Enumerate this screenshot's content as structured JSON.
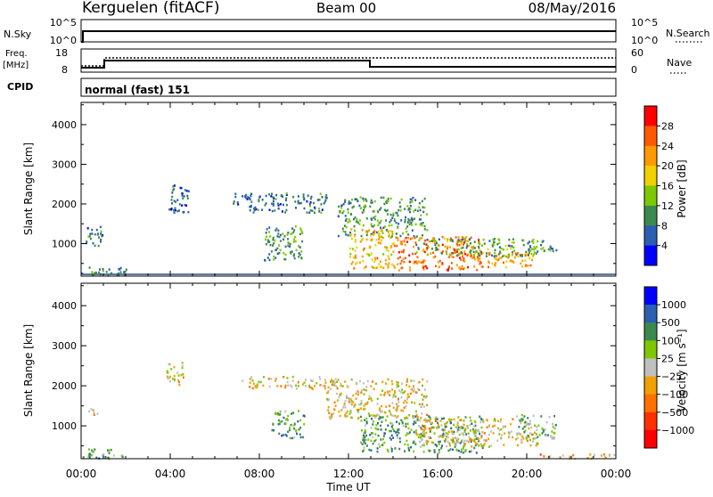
{
  "header": {
    "station": "Kerguelen (fitACF)",
    "beam": "Beam 00",
    "date": "08/May/2016"
  },
  "status_panels": {
    "nsky_label": "N.Sky",
    "nsky_ticks": [
      "10^5",
      "10^0"
    ],
    "nsearch_label": "N.Search",
    "nsearch_ticks": [
      "10^5",
      "10^0"
    ],
    "freq_label_1": "Freq.",
    "freq_label_2": "[MHz]",
    "freq_ticks": [
      "18",
      "8"
    ],
    "nave_label": "Nave",
    "nave_ticks": [
      "60",
      "0"
    ],
    "cpid_label": "CPID",
    "cpid_value": "normal (fast) 151"
  },
  "chart_data": [
    {
      "type": "heatmap",
      "name": "power-panel",
      "ylabel": "Slant Range [km]",
      "ylim": [
        180,
        4560
      ],
      "yticks": [
        1000,
        2000,
        3000,
        4000
      ],
      "xlim": [
        0,
        24
      ],
      "colorbar": {
        "label": "Power [dB]",
        "ticks": [
          "28",
          "24",
          "20",
          "16",
          "12",
          "8",
          "4"
        ],
        "colors": [
          "#ff0000",
          "#ff5a00",
          "#ff9a00",
          "#f0d000",
          "#7dc800",
          "#3a8a50",
          "#2c5fb0",
          "#0000ff"
        ]
      },
      "regions": [
        {
          "t0": 0.0,
          "t1": 2.0,
          "r0": 200,
          "r1": 450,
          "level": 0.25
        },
        {
          "t0": 0.2,
          "t1": 1.0,
          "r0": 900,
          "r1": 1450,
          "level": 0.2
        },
        {
          "t0": 3.8,
          "t1": 4.8,
          "r0": 1800,
          "r1": 2500,
          "level": 0.15
        },
        {
          "t0": 6.8,
          "t1": 7.6,
          "r0": 2000,
          "r1": 2350,
          "level": 0.15
        },
        {
          "t0": 7.5,
          "t1": 11.0,
          "r0": 1800,
          "r1": 2300,
          "level": 0.2
        },
        {
          "t0": 8.2,
          "t1": 10.0,
          "r0": 600,
          "r1": 1500,
          "level": 0.3
        },
        {
          "t0": 11.5,
          "t1": 15.5,
          "r0": 1200,
          "r1": 2200,
          "level": 0.3
        },
        {
          "t0": 12.0,
          "t1": 14.0,
          "r0": 400,
          "r1": 1400,
          "level": 0.65
        },
        {
          "t0": 14.0,
          "t1": 18.0,
          "r0": 350,
          "r1": 1200,
          "level": 0.8
        },
        {
          "t0": 17.5,
          "t1": 20.3,
          "r0": 400,
          "r1": 800,
          "level": 0.75
        },
        {
          "t0": 15.0,
          "t1": 20.5,
          "r0": 700,
          "r1": 1150,
          "level": 0.35
        },
        {
          "t0": 20.0,
          "t1": 21.3,
          "r0": 800,
          "r1": 1100,
          "level": 0.3
        }
      ]
    },
    {
      "type": "heatmap",
      "name": "velocity-panel",
      "ylabel": "Slant Range [km]",
      "ylim": [
        180,
        4560
      ],
      "yticks": [
        1000,
        2000,
        3000,
        4000
      ],
      "xlim": [
        0,
        24
      ],
      "xticks": [
        "00:00",
        "04:00",
        "08:00",
        "12:00",
        "16:00",
        "20:00",
        "00:00"
      ],
      "xlabel": "Time UT",
      "colorbar": {
        "label": "Velocity [m s⁻¹]",
        "ticks": [
          "1000",
          "500",
          "100",
          "25",
          "−25",
          "−100",
          "−500",
          "−1000"
        ],
        "colors": [
          "#0000ff",
          "#2c5fb0",
          "#3a8a50",
          "#7dc800",
          "#c0c0c0",
          "#f0a000",
          "#ff7000",
          "#ff3000",
          "#ff0000"
        ]
      },
      "regions": [
        {
          "t0": 0.0,
          "t1": 2.0,
          "r0": 200,
          "r1": 450,
          "level": 0.7
        },
        {
          "t0": 0.3,
          "t1": 0.9,
          "r0": 1250,
          "r1": 1450,
          "level": 0.4
        },
        {
          "t0": 3.8,
          "t1": 4.6,
          "r0": 2000,
          "r1": 2600,
          "level": 0.45
        },
        {
          "t0": 7.2,
          "t1": 11.5,
          "r0": 1950,
          "r1": 2250,
          "level": 0.45
        },
        {
          "t0": 8.5,
          "t1": 10.0,
          "r0": 700,
          "r1": 1400,
          "level": 0.7
        },
        {
          "t0": 11.0,
          "t1": 15.5,
          "r0": 1200,
          "r1": 2200,
          "level": 0.45
        },
        {
          "t0": 12.5,
          "t1": 18.0,
          "r0": 350,
          "r1": 1300,
          "level": 0.7
        },
        {
          "t0": 15.0,
          "t1": 20.5,
          "r0": 500,
          "r1": 1200,
          "level": 0.45
        },
        {
          "t0": 19.5,
          "t1": 21.3,
          "r0": 700,
          "r1": 1300,
          "level": 0.65
        },
        {
          "t0": 20.5,
          "t1": 24.0,
          "r0": 200,
          "r1": 320,
          "level": 0.35
        }
      ]
    }
  ]
}
